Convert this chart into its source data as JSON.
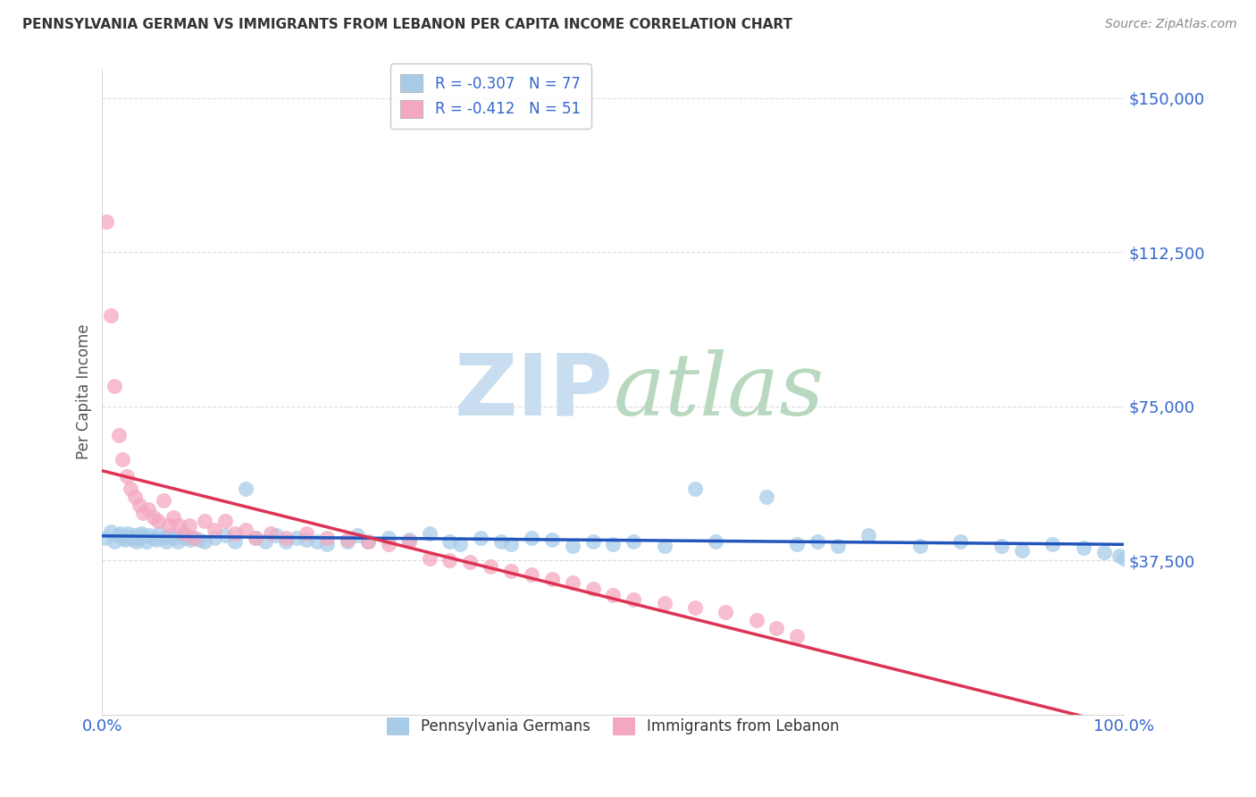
{
  "title": "PENNSYLVANIA GERMAN VS IMMIGRANTS FROM LEBANON PER CAPITA INCOME CORRELATION CHART",
  "source": "Source: ZipAtlas.com",
  "ylabel": "Per Capita Income",
  "yticks": [
    0,
    37500,
    75000,
    112500,
    150000
  ],
  "ytick_labels": [
    "",
    "$37,500",
    "$75,000",
    "$112,500",
    "$150,000"
  ],
  "legend_label1": "R = -0.307   N = 77",
  "legend_label2": "R = -0.412   N = 51",
  "legend_bottom1": "Pennsylvania Germans",
  "legend_bottom2": "Immigrants from Lebanon",
  "blue_color": "#a8cce8",
  "pink_color": "#f4a8c0",
  "blue_line_color": "#2255bb",
  "pink_line_color": "#dd3355",
  "title_color": "#333333",
  "ylabel_color": "#555555",
  "source_color": "#888888",
  "axis_tick_color": "#3366cc",
  "watermark_zip_color": "#c8ddf0",
  "watermark_atlas_color": "#b8d8c0",
  "background_color": "#ffffff",
  "grid_color": "#dddddd",
  "blue_scatter_x": [
    0.3,
    0.8,
    1.2,
    1.5,
    1.8,
    2.0,
    2.2,
    2.5,
    2.7,
    3.0,
    3.2,
    3.4,
    3.6,
    3.8,
    4.0,
    4.3,
    4.6,
    5.0,
    5.3,
    5.6,
    6.0,
    6.3,
    6.6,
    7.0,
    7.4,
    7.8,
    8.2,
    8.6,
    9.0,
    9.5,
    10.0,
    11.0,
    12.0,
    13.0,
    14.0,
    15.0,
    16.0,
    17.0,
    18.0,
    19.0,
    20.0,
    21.0,
    22.0,
    24.0,
    25.0,
    26.0,
    28.0,
    30.0,
    32.0,
    34.0,
    35.0,
    37.0,
    39.0,
    40.0,
    42.0,
    44.0,
    46.0,
    48.0,
    50.0,
    52.0,
    55.0,
    58.0,
    60.0,
    65.0,
    68.0,
    70.0,
    72.0,
    75.0,
    80.0,
    84.0,
    88.0,
    90.0,
    93.0,
    96.0,
    98.0,
    99.5,
    100.0
  ],
  "blue_scatter_y": [
    43000,
    44500,
    42000,
    43500,
    44000,
    43000,
    42500,
    44000,
    43000,
    42500,
    43500,
    42000,
    43000,
    44000,
    43500,
    42000,
    43500,
    43000,
    42500,
    44000,
    43000,
    42000,
    43500,
    43000,
    42000,
    43500,
    43000,
    42500,
    43000,
    42500,
    42000,
    43000,
    43500,
    42000,
    55000,
    43000,
    42000,
    43500,
    42000,
    43000,
    42500,
    42000,
    41500,
    42000,
    43500,
    42000,
    43000,
    42500,
    44000,
    42000,
    41500,
    43000,
    42000,
    41500,
    43000,
    42500,
    41000,
    42000,
    41500,
    42000,
    41000,
    55000,
    42000,
    53000,
    41500,
    42000,
    41000,
    43500,
    41000,
    42000,
    41000,
    40000,
    41500,
    40500,
    39500,
    38500,
    38000
  ],
  "pink_scatter_x": [
    0.4,
    0.8,
    1.2,
    1.6,
    2.0,
    2.4,
    2.8,
    3.2,
    3.6,
    4.0,
    4.5,
    5.0,
    5.5,
    6.0,
    6.5,
    7.0,
    7.5,
    8.0,
    8.5,
    9.0,
    10.0,
    11.0,
    12.0,
    13.0,
    14.0,
    15.0,
    16.5,
    18.0,
    20.0,
    22.0,
    24.0,
    26.0,
    28.0,
    30.0,
    32.0,
    34.0,
    36.0,
    38.0,
    40.0,
    42.0,
    44.0,
    46.0,
    48.0,
    50.0,
    52.0,
    55.0,
    58.0,
    61.0,
    64.0,
    66.0,
    68.0
  ],
  "pink_scatter_y": [
    120000,
    97000,
    80000,
    68000,
    62000,
    58000,
    55000,
    53000,
    51000,
    49000,
    50000,
    48000,
    47000,
    52000,
    46000,
    48000,
    46000,
    44000,
    46000,
    43000,
    47000,
    45000,
    47000,
    44000,
    45000,
    43000,
    44000,
    43000,
    44000,
    43000,
    42500,
    42000,
    41500,
    42000,
    38000,
    37500,
    37000,
    36000,
    35000,
    34000,
    33000,
    32000,
    30500,
    29000,
    28000,
    27000,
    26000,
    25000,
    23000,
    21000,
    19000
  ]
}
